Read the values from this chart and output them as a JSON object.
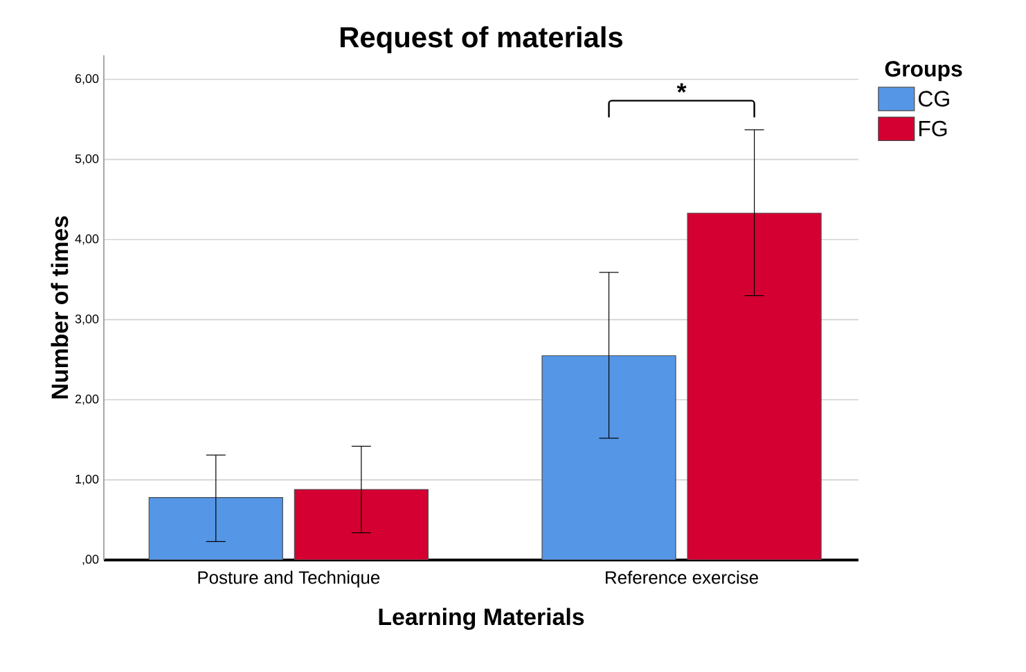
{
  "chart_data": {
    "type": "bar",
    "title": "Request of materials",
    "xlabel": "Learning Materials",
    "ylabel": "Number of times",
    "legend_title": "Groups",
    "legend": "right",
    "grid": "y",
    "categories": [
      "Posture and Technique",
      "Reference exercise"
    ],
    "series": [
      {
        "name": "CG",
        "color": "#5596e6",
        "values": [
          0.78,
          2.55
        ],
        "errors": [
          [
            0.23,
            1.31
          ],
          [
            1.52,
            3.59
          ]
        ]
      },
      {
        "name": "FG",
        "color": "#d50032",
        "values": [
          0.88,
          4.33
        ],
        "errors": [
          [
            0.34,
            1.42
          ],
          [
            3.3,
            5.37
          ]
        ]
      }
    ],
    "ylim": [
      0,
      6.3
    ],
    "yticks": [
      {
        "value": 0,
        "label": ",00"
      },
      {
        "value": 1,
        "label": "1,00"
      },
      {
        "value": 2,
        "label": "2,00"
      },
      {
        "value": 3,
        "label": "3,00"
      },
      {
        "value": 4,
        "label": "4,00"
      },
      {
        "value": 5,
        "label": "5,00"
      },
      {
        "value": 6,
        "label": "6,00"
      }
    ],
    "annotations": [
      "*"
    ]
  }
}
